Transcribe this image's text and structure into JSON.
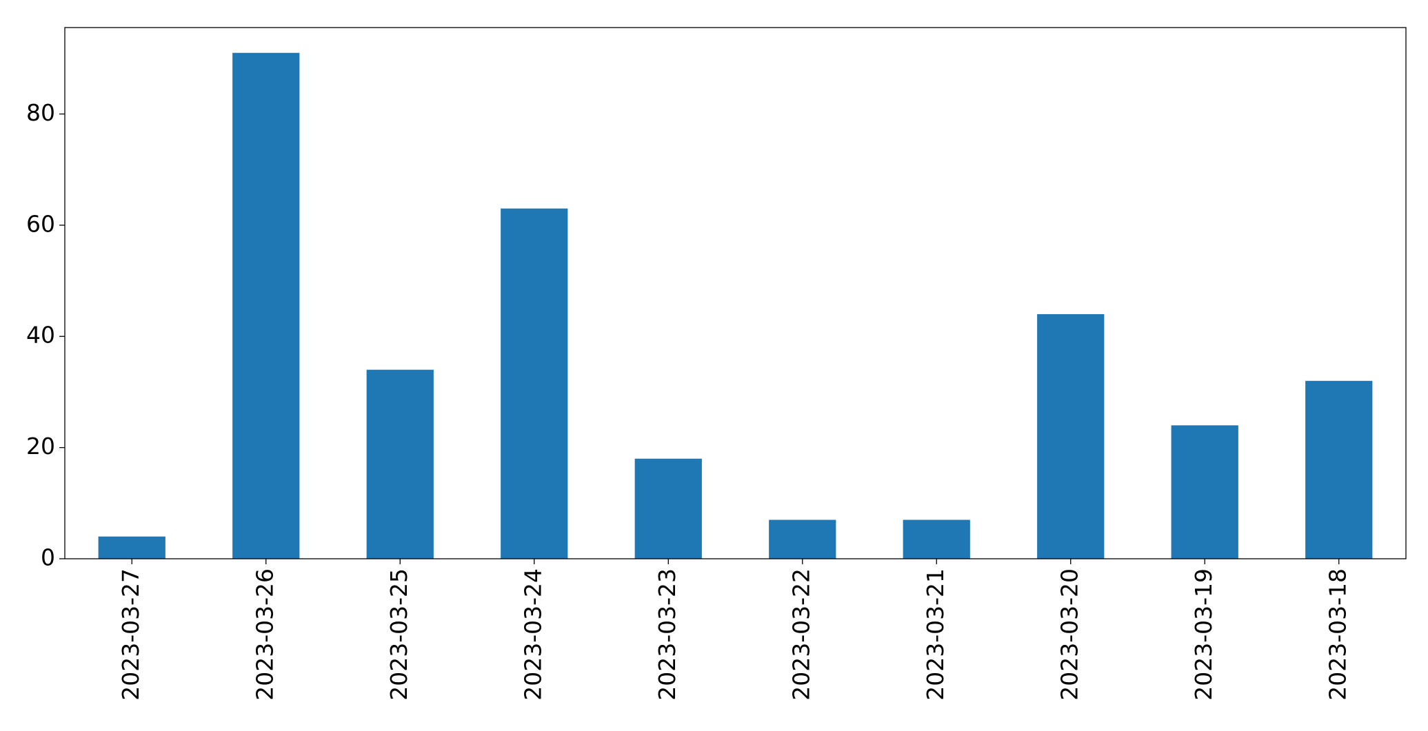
{
  "chart_data": {
    "type": "bar",
    "categories": [
      "2023-03-27",
      "2023-03-26",
      "2023-03-25",
      "2023-03-24",
      "2023-03-23",
      "2023-03-22",
      "2023-03-21",
      "2023-03-20",
      "2023-03-19",
      "2023-03-18"
    ],
    "values": [
      4,
      91,
      34,
      63,
      18,
      7,
      7,
      44,
      24,
      32
    ],
    "color": "#1f77b4",
    "ylim": [
      0,
      95.55
    ],
    "yticks": [
      0,
      20,
      40,
      60,
      80
    ],
    "grid": false
  }
}
